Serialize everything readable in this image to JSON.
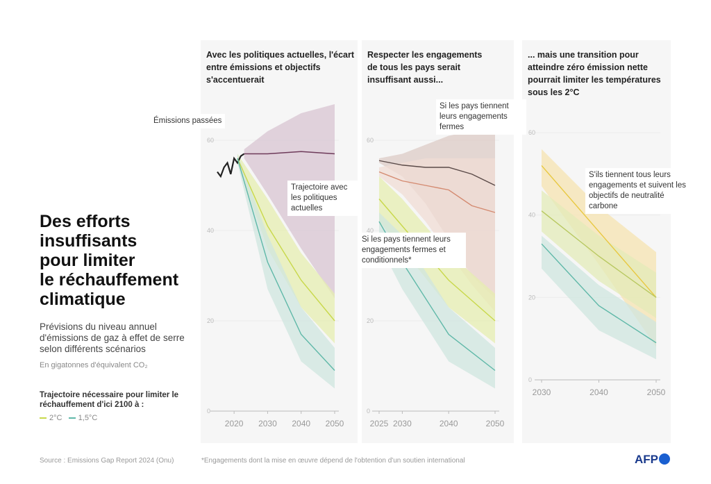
{
  "title": "Des efforts insuffisants pour limiter le réchauffement climatique",
  "title_lines": [
    "Des efforts",
    "insuffisants",
    "pour limiter",
    "le réchauffement",
    "climatique"
  ],
  "subtitle": "Prévisions du niveau annuel d'émissions de gaz à effet de serre selon différents scénarios",
  "unit": "En gigatonnes d'équivalent CO₂",
  "legend_title": "Trajectoire nécessaire pour limiter le réchauffement d'ici 2100 à :",
  "legend": [
    {
      "label": "2°C",
      "color": "#c8d84a"
    },
    {
      "label": "1,5°C",
      "color": "#5fb8a8"
    }
  ],
  "source": "Source : Emissions Gap Report 2024 (Onu)",
  "footnote": "*Engagements dont la mise en œuvre dépend de l'obtention d'un soutien international",
  "logo": "AFP",
  "annotations": {
    "past": "Émissions passées",
    "current": "Trajectoire avec les politiques actuelles",
    "uncond": "Si les pays tiennent leurs engagements fermes",
    "cond": "Si les pays tiennent leurs engagements fermes et conditionnels*",
    "netzero": "S'ils tiennent tous leurs engagements et suivent les objectifs de neutralité carbone"
  },
  "chart_data": [
    {
      "type": "line",
      "title": "Avec les politiques actuelles, l'écart entre émissions et objectifs s'accentuerait",
      "xlim": [
        2015,
        2050
      ],
      "ylim": [
        0,
        60
      ],
      "xticks": [
        2020,
        2030,
        2040,
        2050
      ],
      "yticks": [
        0,
        20,
        40,
        60
      ],
      "series": [
        {
          "name": "Émissions passées",
          "color": "#222222",
          "x": [
            2015,
            2016,
            2017,
            2018,
            2019,
            2020,
            2021,
            2022,
            2023
          ],
          "y": [
            53,
            52,
            54,
            55,
            52.5,
            56,
            55,
            56.5,
            57
          ]
        },
        {
          "name": "Politiques actuelles",
          "color": "#6e3b5a",
          "band": "#d8c4d2",
          "x": [
            2023,
            2030,
            2040,
            2050
          ],
          "y": [
            57,
            57,
            57.5,
            57
          ],
          "lo": [
            56,
            48,
            36,
            25
          ],
          "hi": [
            58,
            62,
            66,
            68
          ]
        },
        {
          "name": "2°C",
          "color": "#c8d84a",
          "band": "#e6edb0",
          "x": [
            2021,
            2030,
            2040,
            2050
          ],
          "y": [
            56,
            41,
            29,
            20
          ],
          "lo": [
            55,
            36,
            23,
            15
          ],
          "hi": [
            57,
            47,
            35,
            26
          ]
        },
        {
          "name": "1,5°C",
          "color": "#5fb8a8",
          "band": "#cfe6df",
          "x": [
            2021,
            2030,
            2040,
            2050
          ],
          "y": [
            56,
            33,
            17,
            9
          ],
          "lo": [
            55,
            27,
            11,
            5
          ],
          "hi": [
            57,
            39,
            23,
            14
          ]
        }
      ]
    },
    {
      "type": "line",
      "title": "Respecter les engagements de tous les pays serait insuffisant aussi...",
      "xlim": [
        2025,
        2050
      ],
      "ylim": [
        0,
        60
      ],
      "xticks": [
        2025,
        2030,
        2040,
        2050
      ],
      "yticks": [
        0,
        20,
        40,
        60
      ],
      "series": [
        {
          "name": "Engagements fermes",
          "color": "#5a4a48",
          "band": "#dccbc6",
          "x": [
            2025,
            2030,
            2035,
            2040,
            2045,
            2050
          ],
          "y": [
            55.5,
            54.5,
            54,
            54,
            52.5,
            50
          ],
          "lo": [
            55,
            52,
            46,
            38,
            30,
            25
          ],
          "hi": [
            56,
            57,
            59,
            61,
            62,
            62
          ]
        },
        {
          "name": "Engagements fermes et conditionnels",
          "color": "#d48a70",
          "band": "#f0dcd4",
          "x": [
            2025,
            2030,
            2035,
            2040,
            2045,
            2050
          ],
          "y": [
            53,
            51,
            50,
            49,
            45.5,
            44
          ],
          "lo": [
            52,
            48,
            42,
            35,
            28,
            22
          ],
          "hi": [
            54,
            55,
            56,
            56,
            56,
            56
          ]
        },
        {
          "name": "2°C",
          "color": "#c8d84a",
          "band": "#e6edb0",
          "x": [
            2025,
            2030,
            2040,
            2050
          ],
          "y": [
            47,
            41,
            29,
            20
          ],
          "lo": [
            42,
            36,
            23,
            15
          ],
          "hi": [
            52,
            47,
            35,
            26
          ]
        },
        {
          "name": "1,5°C",
          "color": "#5fb8a8",
          "band": "#cfe6df",
          "x": [
            2025,
            2030,
            2040,
            2050
          ],
          "y": [
            42,
            33,
            17,
            9
          ],
          "lo": [
            37,
            27,
            11,
            5
          ],
          "hi": [
            44,
            39,
            23,
            14
          ]
        }
      ]
    },
    {
      "type": "line",
      "title": "... mais une transition pour atteindre zéro émission nette pourrait limiter les températures sous les 2°C",
      "xlim": [
        2030,
        2050
      ],
      "ylim": [
        0,
        60
      ],
      "xticks": [
        2030,
        2040,
        2050
      ],
      "yticks": [
        0,
        20,
        40,
        60
      ],
      "series": [
        {
          "name": "Zéro émission nette",
          "color": "#e8c840",
          "band": "#f6e3b0",
          "x": [
            2030,
            2040,
            2050
          ],
          "y": [
            52,
            36,
            20
          ],
          "lo": [
            47,
            28,
            8
          ],
          "hi": [
            56,
            42,
            31
          ]
        },
        {
          "name": "2°C",
          "color": "#b8c860",
          "band": "#e3ebb8",
          "x": [
            2030,
            2040,
            2050
          ],
          "y": [
            41,
            30,
            20
          ],
          "lo": [
            36,
            24,
            15
          ],
          "hi": [
            46,
            35,
            26
          ]
        },
        {
          "name": "1,5°C",
          "color": "#5fb8a8",
          "band": "#cfe6df",
          "x": [
            2030,
            2040,
            2050
          ],
          "y": [
            33,
            18,
            9
          ],
          "lo": [
            27,
            12,
            5
          ],
          "hi": [
            35,
            23,
            14
          ]
        }
      ]
    }
  ]
}
